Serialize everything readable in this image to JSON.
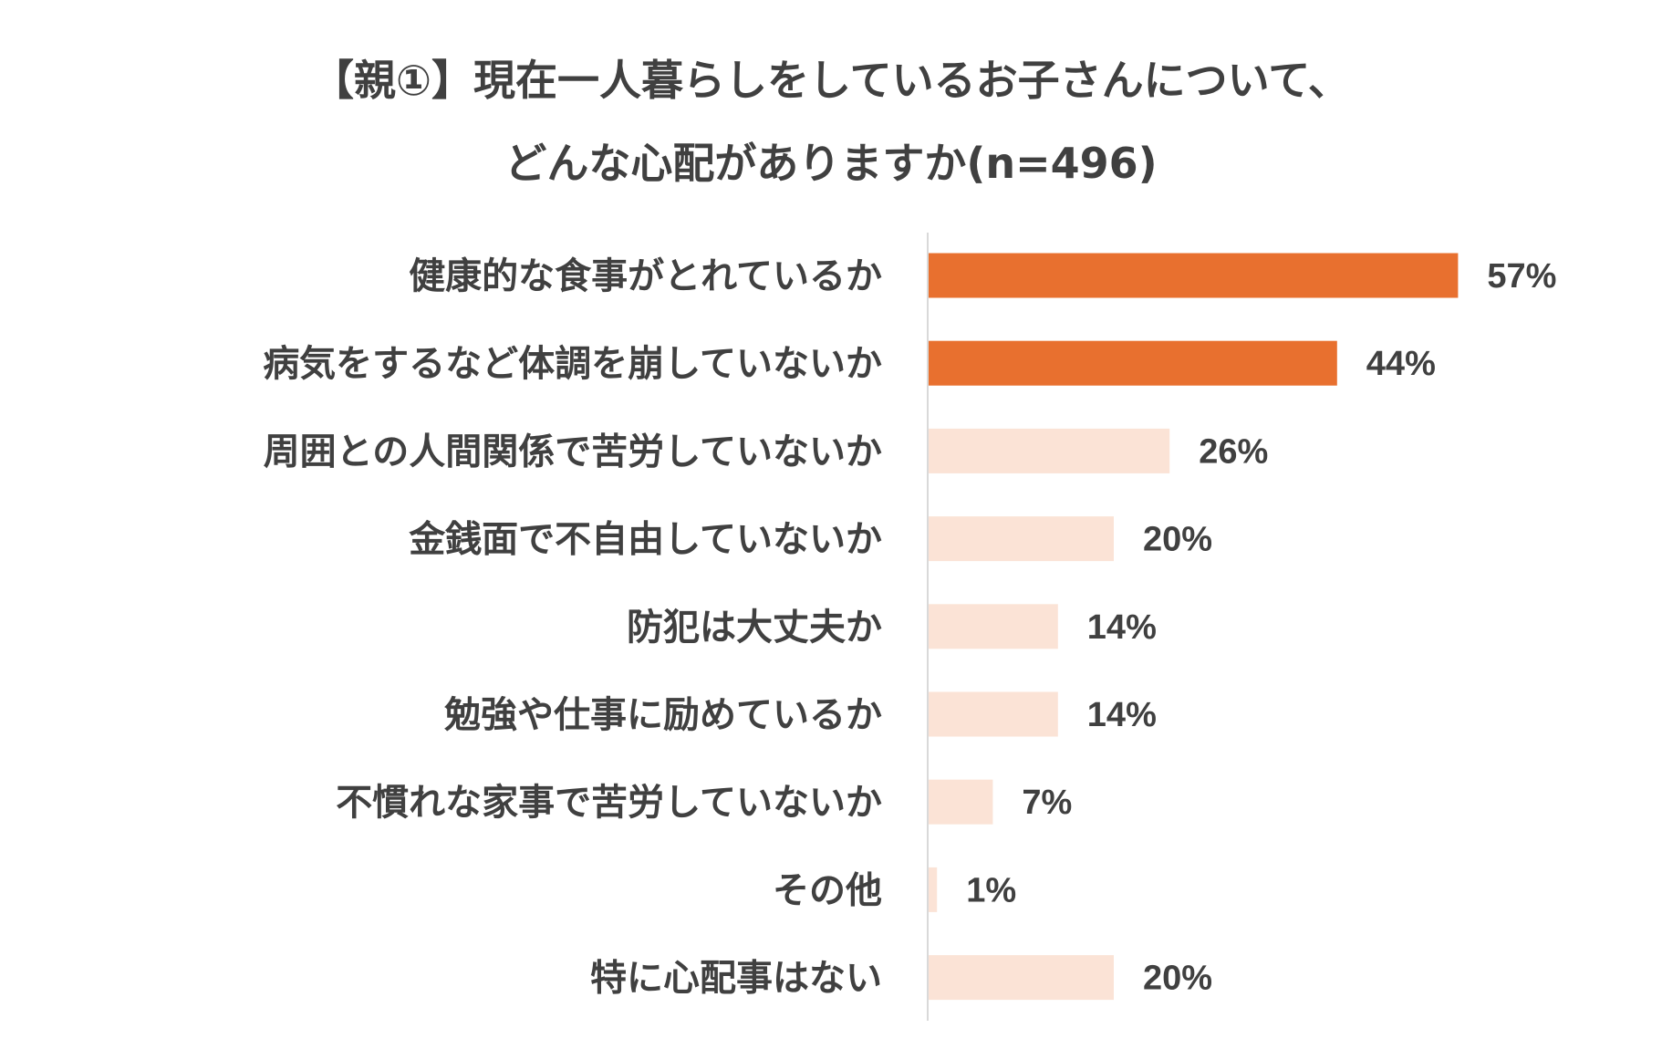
{
  "chart_data": {
    "type": "bar",
    "orientation": "horizontal",
    "title_lines": [
      "【親①】現在一人暮らしをしているお子さんについて、",
      "どんな心配がありますか(n=496)"
    ],
    "categories": [
      "健康的な食事がとれているか",
      "病気をするなど体調を崩していないか",
      "周囲との人間関係で苦労していないか",
      "金銭面で不自由していないか",
      "防犯は大丈夫か",
      "勉強や仕事に励めているか",
      "不慣れな家事で苦労していないか",
      "その他",
      "特に心配事はない"
    ],
    "values": [
      57,
      44,
      26,
      20,
      14,
      14,
      7,
      1,
      20
    ],
    "value_labels": [
      "57%",
      "44%",
      "26%",
      "20%",
      "14%",
      "14%",
      "7%",
      "1%",
      "20%"
    ],
    "highlight": [
      true,
      true,
      false,
      false,
      false,
      false,
      false,
      false,
      false
    ],
    "colors": {
      "highlight": "#E8702F",
      "normal": "#FBE3D6",
      "axis": "#D9D9D9"
    },
    "xlabel": "",
    "ylabel": "",
    "xlim": [
      0,
      100
    ],
    "grid": false,
    "legend": "none"
  }
}
